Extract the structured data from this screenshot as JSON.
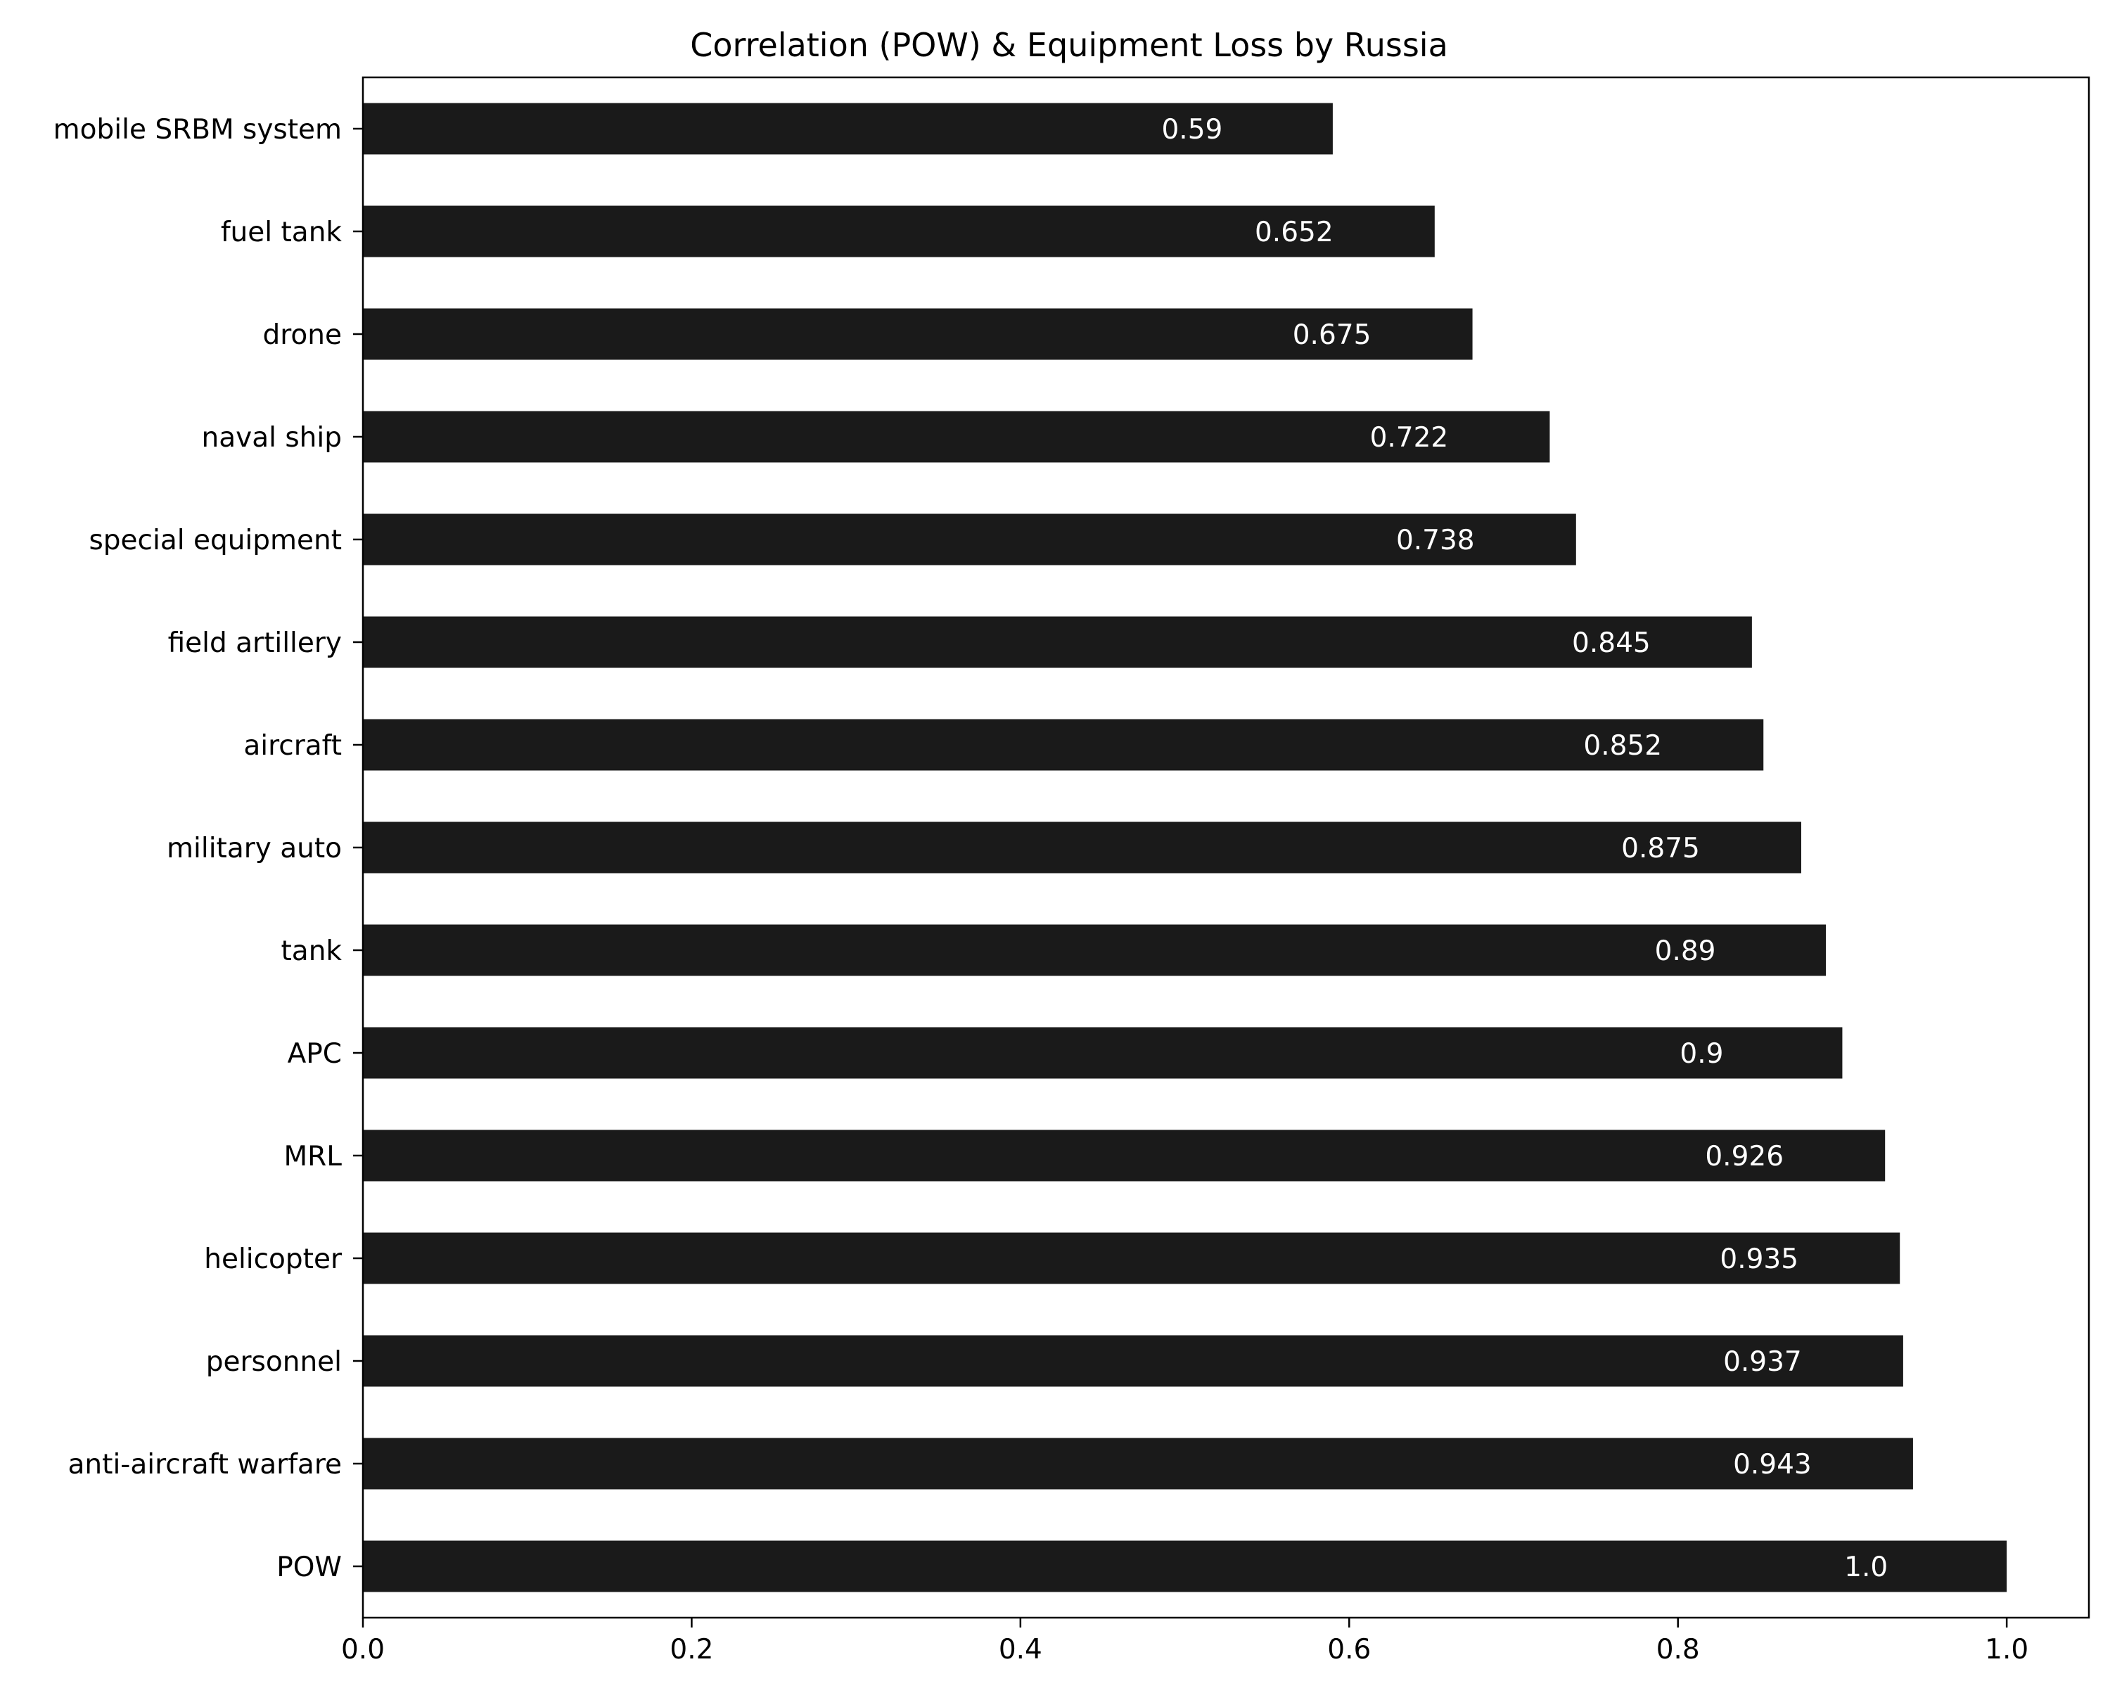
{
  "chart_data": {
    "type": "bar",
    "orientation": "horizontal",
    "title": "Correlation (POW) & Equipment Loss by Russia",
    "xlabel": "",
    "ylabel": "",
    "categories": [
      "POW",
      "anti-aircraft warfare",
      "personnel",
      "helicopter",
      "MRL",
      "APC",
      "tank",
      "military auto",
      "aircraft",
      "field artillery",
      "special equipment",
      "naval ship",
      "drone",
      "fuel tank",
      "mobile SRBM system"
    ],
    "values": [
      1.0,
      0.943,
      0.937,
      0.935,
      0.926,
      0.9,
      0.89,
      0.875,
      0.852,
      0.845,
      0.738,
      0.722,
      0.675,
      0.652,
      0.59
    ],
    "data_labels": [
      "1.0",
      "0.943",
      "0.937",
      "0.935",
      "0.926",
      "0.9",
      "0.89",
      "0.875",
      "0.852",
      "0.845",
      "0.738",
      "0.722",
      "0.675",
      "0.652",
      "0.59"
    ],
    "xlim": [
      0.0,
      1.05
    ],
    "xticks": [
      0.0,
      0.2,
      0.4,
      0.6,
      0.8,
      1.0
    ],
    "xtick_labels": [
      "0.0",
      "0.2",
      "0.4",
      "0.6",
      "0.8",
      "1.0"
    ],
    "grid": false,
    "legend": "none",
    "bar_color": "#1a1a1a",
    "label_color": "#ffffff"
  }
}
